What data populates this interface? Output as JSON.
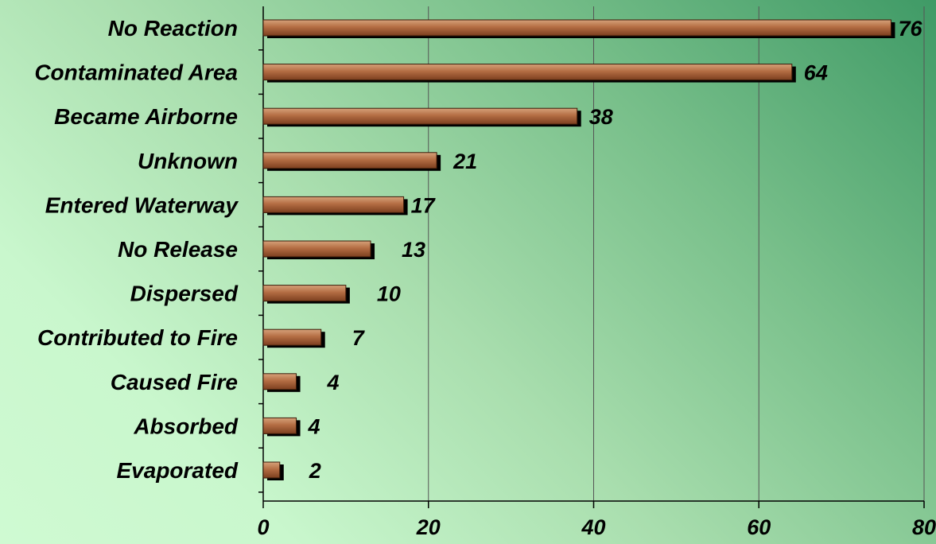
{
  "chart_data": {
    "type": "bar",
    "orientation": "horizontal",
    "categories": [
      "No Reaction",
      "Contaminated Area",
      "Became Airborne",
      "Unknown",
      "Entered Waterway",
      "No Release",
      "Dispersed",
      "Contributed to Fire",
      "Caused Fire",
      "Absorbed",
      "Evaporated"
    ],
    "values": [
      76,
      64,
      38,
      21,
      17,
      13,
      10,
      7,
      4,
      4,
      2
    ],
    "value_labels": [
      "76",
      "64",
      "38",
      "21",
      "17",
      "13",
      "10",
      "7",
      "4",
      "4",
      "2"
    ],
    "title": "",
    "xlabel": "",
    "ylabel": "",
    "xlim": [
      0,
      80
    ],
    "xticks": [
      "0",
      "20",
      "40",
      "60",
      "80"
    ],
    "grid": "vertical major gridlines",
    "legend": "none"
  },
  "colors": {
    "bar_fill_light": "#d6a27a",
    "bar_fill_mid": "#b46d43",
    "bar_fill_dark": "#7c3f1f",
    "bar_shadow": "#000000",
    "gridline": "#555555",
    "background_light": "#cffad2",
    "background_dark": "#3f9a66"
  }
}
